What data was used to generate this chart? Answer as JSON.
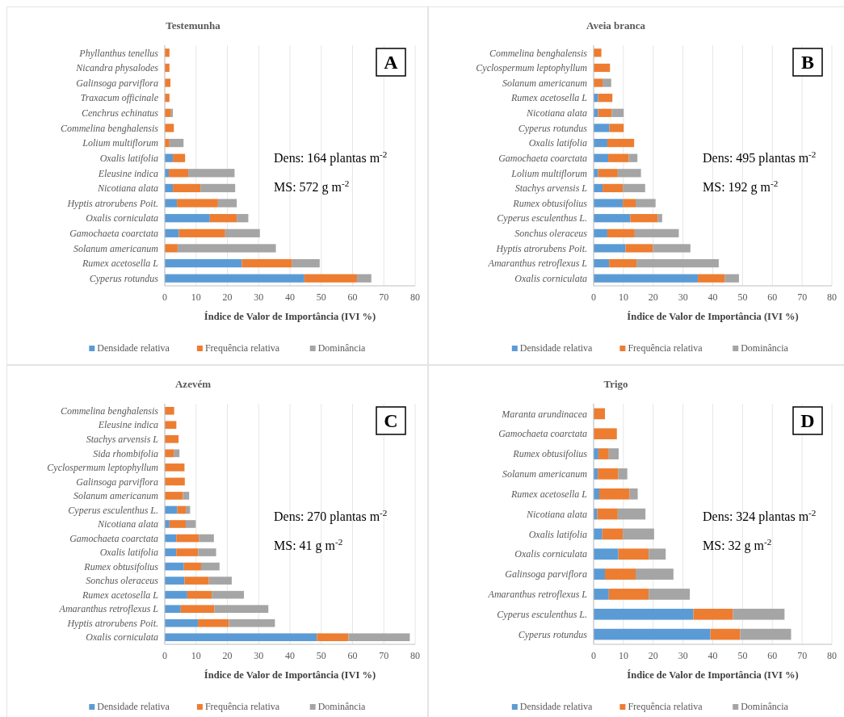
{
  "chart_data": [
    {
      "type": "bar",
      "orientation": "horizontal",
      "stacked": true,
      "title": "Testemunha",
      "xlabel": "Índice de Valor de Importância (IVI %)",
      "xlim": [
        0,
        80
      ],
      "xticks": [
        0,
        10,
        20,
        30,
        40,
        50,
        60,
        70,
        80
      ],
      "grid": "x",
      "legend": "bottom",
      "annotations": [
        "A",
        "Dens:  164 plantas  m$^{-2}$",
        "MS: 572 g m$^{-2}$"
      ],
      "categories": [
        "Phyllanthus tenellus",
        "Nicandra physalodes",
        "Galinsoga parviflora",
        "Traxacum officinale",
        "Cenchrus echinatus",
        "Commelina benghalensis",
        "Lolium multiflorum",
        "Oxalis latifolia",
        "Eleusine indica",
        "Nicotiana alata",
        "Hyptis atrorubens Poit.",
        "Oxalis corniculata",
        "Gamochaeta coarctata",
        "Solanum americanum",
        "Rumex acetosella L",
        "Cyperus rotundus"
      ],
      "series": [
        {
          "name": "Densidade relativa",
          "color": "#5b9bd5",
          "values": [
            0,
            0,
            0,
            null,
            0,
            null,
            0,
            2.6,
            1.3,
            2.6,
            3.9,
            14.4,
            4.5,
            0,
            24.6,
            44.6
          ]
        },
        {
          "name": "Frequência relativa",
          "color": "#ed7d31",
          "values": [
            1.5,
            1.5,
            1.8,
            1.5,
            2.0,
            2.9,
            1.5,
            3.9,
            6.2,
            8.8,
            13.1,
            8.6,
            14.8,
            4.1,
            16.1,
            16.8
          ]
        },
        {
          "name": "Dominância",
          "color": "#a5a5a5",
          "values": [
            0,
            0,
            0,
            0,
            0.6,
            0,
            4.5,
            0,
            14.8,
            11.1,
            6.0,
            3.7,
            11.1,
            31.4,
            8.8,
            4.6
          ]
        }
      ]
    },
    {
      "type": "bar",
      "orientation": "horizontal",
      "stacked": true,
      "title": "Aveia branca",
      "xlabel": "Índice de Valor de Importância (IVI %)",
      "xlim": [
        0,
        80
      ],
      "xticks": [
        0,
        10,
        20,
        30,
        40,
        50,
        60,
        70,
        80
      ],
      "grid": "x",
      "legend": "bottom",
      "annotations": [
        "B",
        "Dens:  495 plantas  m$^{-2}$",
        "MS: 192 g m$^{-2}$"
      ],
      "categories": [
        "Commelina benghalensis",
        "Cyclospermum leptophyllum",
        "Solanum americanum",
        "Rumex acetosella L",
        "Nicotiana alata",
        "Cyperus rotundus",
        "Oxalis latifolia",
        "Gamochaeta coarctata",
        "Lolium multiflorum",
        "Stachys arvensis L",
        "Rumex obtusifolius",
        "Cyperus esculenthus L.",
        "Sonchus oleraceus",
        "Hyptis atrorubens Poit.",
        "Amaranthus retroflexus L",
        "Oxalis corniculata"
      ],
      "series": [
        {
          "name": "Densidade relativa",
          "color": "#5b9bd5",
          "values": [
            0,
            0,
            0,
            1.5,
            1.5,
            5.3,
            4.6,
            4.9,
            1.5,
            3.0,
            9.8,
            12.3,
            4.6,
            10.7,
            5.2,
            35.0
          ]
        },
        {
          "name": "Frequência relativa",
          "color": "#ed7d31",
          "values": [
            2.6,
            5.5,
            3.0,
            4.8,
            4.6,
            4.8,
            9.0,
            6.9,
            6.6,
            6.8,
            4.3,
            9.2,
            9.2,
            9.2,
            9.2,
            9.1
          ]
        },
        {
          "name": "Dominância",
          "color": "#a5a5a5",
          "values": [
            0,
            0,
            2.9,
            0,
            4.0,
            0,
            0,
            2.9,
            7.8,
            7.5,
            6.7,
            1.5,
            14.8,
            12.6,
            27.6,
            4.7
          ]
        }
      ]
    },
    {
      "type": "bar",
      "orientation": "horizontal",
      "stacked": true,
      "title": "Azevém",
      "xlabel": "Índice de Valor de Importância (IVI %)",
      "xlim": [
        0,
        80
      ],
      "xticks": [
        0,
        10,
        20,
        30,
        40,
        50,
        60,
        70,
        80
      ],
      "grid": "x",
      "legend": "bottom",
      "annotations": [
        "C",
        "Dens:  270 plantas  m$^{-2}$",
        "MS: 41 g m$^{-2}$"
      ],
      "categories": [
        "Commelina benghalensis",
        "Eleusine indica",
        "Stachys arvensis L",
        "Sida rhombifolia",
        "Cyclospermum leptophyllum",
        "Galinsoga parviflora",
        "Solanum americanum",
        "Cyperus esculenthus L.",
        "Nicotiana alata",
        "Gamochaeta coarctata",
        "Oxalis latifolia",
        "Rumex obtusifolius",
        "Sonchus oleraceus",
        "Rumex acetosella L",
        "Amaranthus retroflexus L",
        "Hyptis atrorubens Poit.",
        "Oxalis corniculata"
      ],
      "series": [
        {
          "name": "Densidade relativa",
          "color": "#5b9bd5",
          "values": [
            0,
            0,
            0,
            0,
            0,
            null,
            0,
            4.0,
            1.5,
            3.7,
            3.7,
            6.1,
            6.3,
            7.2,
            5.1,
            10.6,
            48.6
          ]
        },
        {
          "name": "Frequência relativa",
          "color": "#ed7d31",
          "values": [
            3.0,
            3.7,
            4.4,
            3.0,
            6.3,
            6.4,
            5.8,
            2.7,
            5.2,
            7.2,
            7.0,
            5.5,
            7.8,
            7.8,
            10.8,
            9.9,
            10.1
          ]
        },
        {
          "name": "Dominância",
          "color": "#a5a5a5",
          "values": [
            0,
            0,
            0,
            1.7,
            0,
            0,
            2.0,
            1.4,
            3.2,
            4.8,
            5.7,
            5.9,
            7.3,
            10.3,
            17.2,
            14.7,
            19.6
          ]
        }
      ]
    },
    {
      "type": "bar",
      "orientation": "horizontal",
      "stacked": true,
      "title": "Trigo",
      "xlabel": "Índice de Valor de Importância (IVI %)",
      "xlim": [
        0,
        80
      ],
      "xticks": [
        0,
        10,
        20,
        30,
        40,
        50,
        60,
        70,
        80
      ],
      "grid": "x",
      "legend": "bottom",
      "annotations": [
        "D",
        "Dens:  324 plantas  m$^{-2}$",
        "MS: 32  g m$^{-2}$"
      ],
      "categories": [
        "Maranta arundinacea",
        "Gamochaeta coarctata",
        "Rumex obtusifolius",
        "Solanum americanum",
        "Rumex acetosella L",
        "Nicotiana alata",
        "Oxalis latifolia",
        "Oxalis corniculata",
        "Galinsoga parviflora",
        "Amaranthus retroflexus L",
        "Cyperus esculenthus L.",
        "Cyperus rotundus"
      ],
      "series": [
        {
          "name": "Densidade relativa",
          "color": "#5b9bd5",
          "values": [
            0,
            0,
            1.6,
            1.4,
            1.9,
            1.2,
            2.9,
            8.3,
            3.8,
            5.1,
            33.5,
            39.2
          ]
        },
        {
          "name": "Frequência relativa",
          "color": "#ed7d31",
          "values": [
            3.8,
            7.8,
            3.5,
            6.9,
            10.2,
            6.9,
            6.9,
            10.2,
            10.3,
            13.4,
            13.3,
            10.0
          ]
        },
        {
          "name": "Dominância",
          "color": "#a5a5a5",
          "values": [
            0,
            0,
            3.3,
            3.0,
            2.7,
            9.3,
            10.5,
            5.7,
            12.7,
            13.8,
            17.3,
            17.1
          ]
        }
      ]
    }
  ]
}
